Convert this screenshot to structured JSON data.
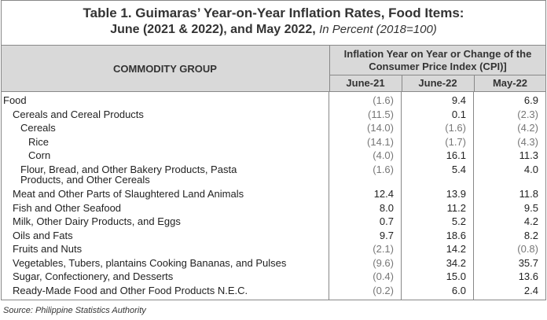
{
  "title": {
    "line1": "Table 1. Guimaras’ Year-on-Year Inflation Rates, Food Items:",
    "line2_bold": "June (2021 & 2022), and May 2022,",
    "line2_italic": "In Percent (2018=100)"
  },
  "header": {
    "commodity": "COMMODITY GROUP",
    "inflation_line1": "Inflation Year on Year or Change of the",
    "inflation_line2": "Consumer Price Index (CPI)]",
    "columns": [
      "June-21",
      "June-22",
      "May-22"
    ]
  },
  "rows": [
    {
      "label": "Food",
      "indent": 0,
      "v": [
        "(1.6)",
        "9.4",
        "6.9"
      ]
    },
    {
      "label": "Cereals and Cereal Products",
      "indent": 1,
      "v": [
        "(11.5)",
        "0.1",
        "(2.3)"
      ]
    },
    {
      "label": "Cereals",
      "indent": 2,
      "v": [
        "(14.0)",
        "(1.6)",
        "(4.2)"
      ]
    },
    {
      "label": "Rice",
      "indent": 3,
      "v": [
        "(14.1)",
        "(1.7)",
        "(4.3)"
      ]
    },
    {
      "label": "Corn",
      "indent": 3,
      "v": [
        "(4.0)",
        "16.1",
        "11.3"
      ]
    },
    {
      "label": "Flour, Bread, and Other Bakery Products, Pasta",
      "label2": "Products, and Other Cereals",
      "indent": 2,
      "v": [
        "(1.6)",
        "5.4",
        "4.0"
      ]
    },
    {
      "label": "Meat and Other Parts of Slaughtered Land Animals",
      "indent": 1,
      "v": [
        "12.4",
        "13.9",
        "11.8"
      ]
    },
    {
      "label": "Fish and Other Seafood",
      "indent": 1,
      "v": [
        "8.0",
        "11.2",
        "9.5"
      ]
    },
    {
      "label": "Milk, Other Dairy Products, and Eggs",
      "indent": 1,
      "v": [
        "0.7",
        "5.2",
        "4.2"
      ]
    },
    {
      "label": "Oils and Fats",
      "indent": 1,
      "v": [
        "9.7",
        "18.6",
        "8.2"
      ]
    },
    {
      "label": "Fruits and Nuts",
      "indent": 1,
      "v": [
        "(2.1)",
        "14.2",
        "(0.8)"
      ]
    },
    {
      "label": "Vegetables, Tubers, plantains Cooking Bananas, and Pulses",
      "indent": 1,
      "v": [
        "(9.6)",
        "34.2",
        "35.7"
      ]
    },
    {
      "label": "Sugar, Confectionery, and Desserts",
      "indent": 1,
      "v": [
        "(0.4)",
        "15.0",
        "13.6"
      ]
    },
    {
      "label": "Ready-Made Food and Other Food Products N.E.C.",
      "indent": 1,
      "v": [
        "(0.2)",
        "6.0",
        "2.4"
      ]
    }
  ],
  "source": "Source: Philippine Statistics Authority"
}
